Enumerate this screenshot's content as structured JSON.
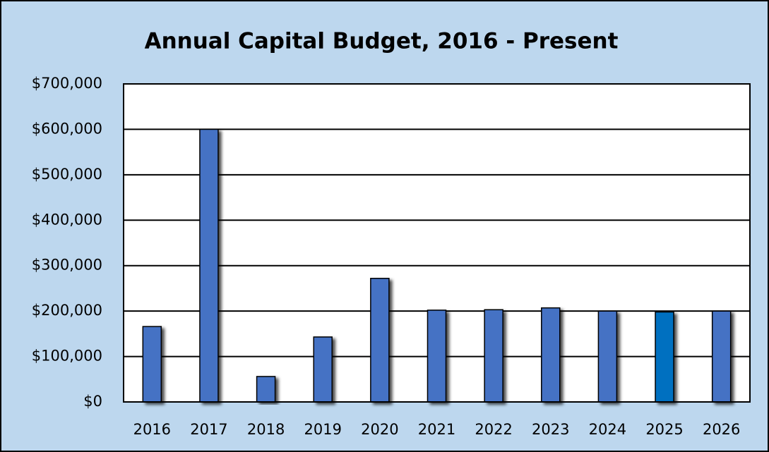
{
  "chart_data": {
    "type": "bar",
    "title": "Annual Capital Budget, 2016 - Present",
    "categories": [
      "2016",
      "2017",
      "2018",
      "2019",
      "2020",
      "2021",
      "2022",
      "2023",
      "2024",
      "2025",
      "2026"
    ],
    "values": [
      166000,
      600000,
      56000,
      143000,
      272000,
      202000,
      203000,
      207000,
      200000,
      198000,
      200000
    ],
    "colors": [
      "#4472c4",
      "#4472c4",
      "#4472c4",
      "#4472c4",
      "#4472c4",
      "#4472c4",
      "#4472c4",
      "#4472c4",
      "#4472c4",
      "#0070c0",
      "#4472c4"
    ],
    "ylim": [
      0,
      700000
    ],
    "yticks": [
      {
        "value": 0,
        "label": "$0"
      },
      {
        "value": 100000,
        "label": "$100,000"
      },
      {
        "value": 200000,
        "label": "$200,000"
      },
      {
        "value": 300000,
        "label": "$300,000"
      },
      {
        "value": 400000,
        "label": "$400,000"
      },
      {
        "value": 500000,
        "label": "$500,000"
      },
      {
        "value": 600000,
        "label": "$600,000"
      },
      {
        "value": 700000,
        "label": "$700,000"
      }
    ],
    "grid": true
  }
}
